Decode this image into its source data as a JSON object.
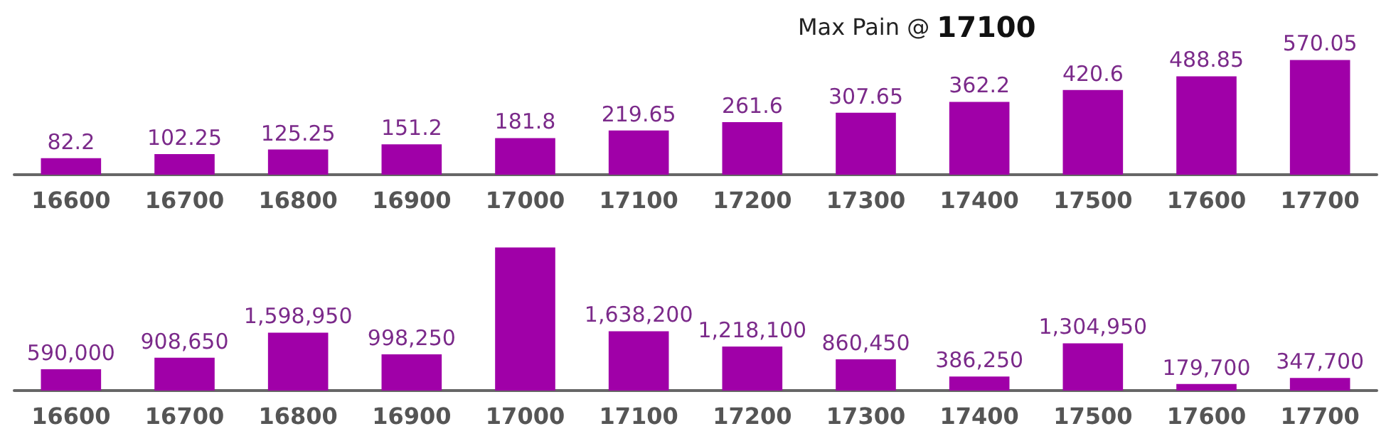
{
  "chart_data": [
    {
      "type": "bar",
      "title": "Max Pain @ 17100",
      "categories": [
        "16600",
        "16700",
        "16800",
        "16900",
        "17000",
        "17100",
        "17200",
        "17300",
        "17400",
        "17500",
        "17600",
        "17700"
      ],
      "values": [
        82.2,
        102.25,
        125.25,
        151.2,
        181.8,
        219.65,
        261.6,
        307.65,
        362.2,
        420.6,
        488.85,
        570.05
      ],
      "color": "#a000a8",
      "tick_labels": "x",
      "data_labels": true
    },
    {
      "type": "bar",
      "categories": [
        "16600",
        "16700",
        "16800",
        "16900",
        "17000",
        "17100",
        "17200",
        "17300",
        "17400",
        "17500",
        "17600",
        "17700"
      ],
      "values": [
        590000,
        908650,
        1598950,
        998250,
        3950000,
        1638200,
        1218100,
        860450,
        386250,
        1304950,
        179700,
        347700
      ],
      "color": "#a000a8",
      "value_labels": [
        "590,000",
        "908,650",
        "1,598,950",
        "998,250",
        null,
        "1,638,200",
        "1,218,100",
        "860,450",
        "386,250",
        "1,304,950",
        "179,700",
        "347,700"
      ],
      "tick_labels": "x"
    }
  ]
}
